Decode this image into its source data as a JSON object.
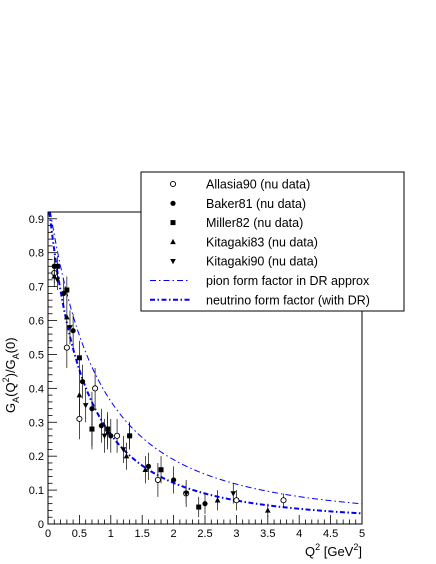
{
  "chart_data": {
    "type": "scatter",
    "xlabel_main": "Q",
    "xlabel_sup": "2",
    "xlabel_unit_pre": " [GeV",
    "xlabel_unit_sup": "2",
    "xlabel_unit_post": "]",
    "ylabel": "G_A(Q^2)/G_A(0)",
    "ylabel_parts": {
      "a": "G",
      "b": "A",
      "c": "(Q",
      "d": "2",
      "e": ")/G",
      "f": "A",
      "g": "(0)"
    },
    "xlim": [
      0,
      5
    ],
    "ylim": [
      0,
      0.92
    ],
    "x_ticks": [
      "0",
      "0.5",
      "1",
      "1.5",
      "2",
      "2.5",
      "3",
      "3.5",
      "4",
      "4.5",
      "5"
    ],
    "y_ticks": [
      "0",
      "0.1",
      "0.2",
      "0.3",
      "0.4",
      "0.5",
      "0.6",
      "0.7",
      "0.8",
      "0.9"
    ],
    "legend_position": "top-right",
    "legend": [
      {
        "label": "Allasia90 (nu data)",
        "marker": "open-circle"
      },
      {
        "label": "Baker81 (nu data)",
        "marker": "filled-circle"
      },
      {
        "label": "Miller82 (nu data)",
        "marker": "filled-square"
      },
      {
        "label": "Kitagaki83 (nu data)",
        "marker": "triangle-up"
      },
      {
        "label": "Kitagaki90 (nu data)",
        "marker": "triangle-down"
      },
      {
        "label": "pion form factor in DR approx",
        "marker": "dash-dot-thin"
      },
      {
        "label": "neutrino form factor (with DR)",
        "marker": "dash-dot-thick"
      }
    ],
    "series": [
      {
        "name": "Allasia90 (nu data)",
        "marker": "open-circle",
        "points": [
          {
            "x": 0.1,
            "y": 0.74,
            "err": 0.03
          },
          {
            "x": 0.3,
            "y": 0.52,
            "err": 0.06
          },
          {
            "x": 0.5,
            "y": 0.31,
            "err": 0.06
          },
          {
            "x": 0.75,
            "y": 0.4,
            "err": 0.06
          },
          {
            "x": 1.1,
            "y": 0.26,
            "err": 0.05
          },
          {
            "x": 1.75,
            "y": 0.13,
            "err": 0.05
          },
          {
            "x": 2.2,
            "y": 0.09,
            "err": 0.04
          },
          {
            "x": 3.0,
            "y": 0.07,
            "err": 0.03
          },
          {
            "x": 3.75,
            "y": 0.07,
            "err": 0.02
          }
        ]
      },
      {
        "name": "Baker81 (nu data)",
        "marker": "filled-circle",
        "points": [
          {
            "x": 0.1,
            "y": 0.76,
            "err": 0.03
          },
          {
            "x": 0.25,
            "y": 0.68,
            "err": 0.04
          },
          {
            "x": 0.4,
            "y": 0.57,
            "err": 0.05
          },
          {
            "x": 0.55,
            "y": 0.42,
            "err": 0.05
          },
          {
            "x": 0.7,
            "y": 0.34,
            "err": 0.05
          },
          {
            "x": 0.85,
            "y": 0.29,
            "err": 0.05
          },
          {
            "x": 1.0,
            "y": 0.26,
            "err": 0.05
          },
          {
            "x": 1.3,
            "y": 0.26,
            "err": 0.04
          },
          {
            "x": 1.6,
            "y": 0.17,
            "err": 0.04
          },
          {
            "x": 2.0,
            "y": 0.13,
            "err": 0.04
          },
          {
            "x": 2.5,
            "y": 0.06,
            "err": 0.03
          }
        ]
      },
      {
        "name": "Miller82 (nu data)",
        "marker": "filled-square",
        "points": [
          {
            "x": 0.15,
            "y": 0.76,
            "err": 0.03
          },
          {
            "x": 0.3,
            "y": 0.69,
            "err": 0.04
          },
          {
            "x": 0.5,
            "y": 0.49,
            "err": 0.05
          },
          {
            "x": 0.7,
            "y": 0.28,
            "err": 0.05
          },
          {
            "x": 0.95,
            "y": 0.28,
            "err": 0.05
          },
          {
            "x": 1.3,
            "y": 0.26,
            "err": 0.04
          },
          {
            "x": 1.8,
            "y": 0.16,
            "err": 0.04
          },
          {
            "x": 2.4,
            "y": 0.05,
            "err": 0.03
          }
        ]
      },
      {
        "name": "Kitagaki83 (nu data)",
        "marker": "triangle-up",
        "points": [
          {
            "x": 0.1,
            "y": 0.73,
            "err": 0.03
          },
          {
            "x": 0.3,
            "y": 0.61,
            "err": 0.05
          },
          {
            "x": 0.5,
            "y": 0.38,
            "err": 0.06
          },
          {
            "x": 0.7,
            "y": 0.28,
            "err": 0.06
          },
          {
            "x": 0.95,
            "y": 0.27,
            "err": 0.05
          },
          {
            "x": 1.25,
            "y": 0.2,
            "err": 0.04
          },
          {
            "x": 1.55,
            "y": 0.16,
            "err": 0.04
          },
          {
            "x": 2.7,
            "y": 0.07,
            "err": 0.03
          },
          {
            "x": 3.5,
            "y": 0.04,
            "err": 0.02
          }
        ]
      },
      {
        "name": "Kitagaki90 (nu data)",
        "marker": "triangle-down",
        "points": [
          {
            "x": 0.15,
            "y": 0.72,
            "err": 0.03
          },
          {
            "x": 0.35,
            "y": 0.58,
            "err": 0.05
          },
          {
            "x": 0.6,
            "y": 0.35,
            "err": 0.05
          },
          {
            "x": 0.9,
            "y": 0.26,
            "err": 0.05
          },
          {
            "x": 1.2,
            "y": 0.22,
            "err": 0.04
          },
          {
            "x": 2.2,
            "y": 0.09,
            "err": 0.03
          },
          {
            "x": 2.95,
            "y": 0.09,
            "err": 0.03
          }
        ]
      }
    ],
    "curves": [
      {
        "name": "pion form factor in DR approx",
        "style": "dash-dot-thin",
        "color": "#0000ff",
        "M": 1.25
      },
      {
        "name": "neutrino form factor (with DR)",
        "style": "dash-dot-thick",
        "color": "#0000ff",
        "M": 1.05
      }
    ]
  }
}
